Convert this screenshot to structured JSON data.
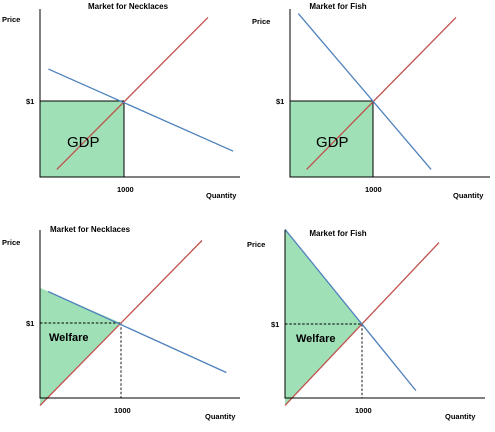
{
  "colors": {
    "supply": "#c0504d",
    "demand": "#4f81bd",
    "fill": "#9fe0b6",
    "axis": "#000000"
  },
  "chart_data": [
    {
      "type": "line",
      "title": "Market for Necklaces",
      "ylabel": "Price",
      "xlabel": "Quantity",
      "y_tick": "$1",
      "x_tick": "1000",
      "shaded_region": "rectangle",
      "shaded_label": "GDP",
      "equilibrium": {
        "quantity": 1000,
        "price": 1
      },
      "series": [
        {
          "role": "supply",
          "x": [
            200,
            2000
          ],
          "y": [
            0.1,
            2.1
          ]
        },
        {
          "role": "demand",
          "x": [
            100,
            2300
          ],
          "y": [
            1.42,
            0.34
          ]
        }
      ]
    },
    {
      "type": "line",
      "title": "Market for Fish",
      "ylabel": "Price",
      "xlabel": "Quantity",
      "y_tick": "$1",
      "x_tick": "1000",
      "shaded_region": "rectangle",
      "shaded_label": "GDP",
      "equilibrium": {
        "quantity": 1000,
        "price": 1
      },
      "series": [
        {
          "role": "supply",
          "x": [
            200,
            2000
          ],
          "y": [
            0.1,
            2.1
          ]
        },
        {
          "role": "demand",
          "x": [
            100,
            1700
          ],
          "y": [
            2.15,
            0.1
          ]
        }
      ]
    },
    {
      "type": "line",
      "title": "Market for Necklaces",
      "ylabel": "Price",
      "xlabel": "Quantity",
      "y_tick": "$1",
      "x_tick": "1000",
      "shaded_region": "welfare-triangle",
      "shaded_label": "Welfare",
      "equilibrium": {
        "quantity": 1000,
        "price": 1
      },
      "series": [
        {
          "role": "supply",
          "x": [
            0,
            2000
          ],
          "y": [
            -0.1,
            2.1
          ]
        },
        {
          "role": "demand",
          "x": [
            100,
            2300
          ],
          "y": [
            1.42,
            0.34
          ]
        }
      ]
    },
    {
      "type": "line",
      "title": "Market for Fish",
      "ylabel": "Price",
      "xlabel": "Quantity",
      "y_tick": "$1",
      "x_tick": "1000",
      "shaded_region": "welfare-triangle",
      "shaded_label": "Welfare",
      "equilibrium": {
        "quantity": 1000,
        "price": 1
      },
      "series": [
        {
          "role": "supply",
          "x": [
            0,
            2000
          ],
          "y": [
            -0.1,
            2.1
          ]
        },
        {
          "role": "demand",
          "x": [
            0,
            1700
          ],
          "y": [
            2.28,
            0.1
          ]
        }
      ]
    }
  ]
}
